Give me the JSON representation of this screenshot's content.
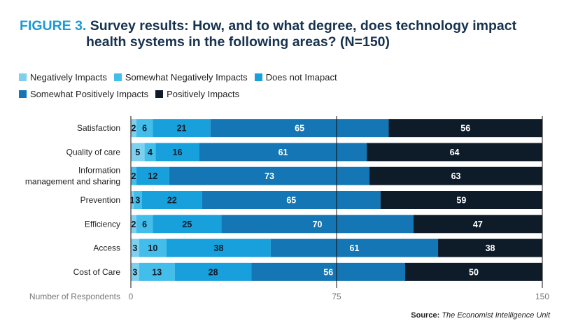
{
  "title": {
    "prefix": "FIGURE 3.",
    "line1": "Survey results: How, and to what degree, does technology impact",
    "line2": "health systems in the following areas? (N=150)"
  },
  "source": {
    "label": "Source:",
    "text": "The Economist Intelligence Unit"
  },
  "colors": {
    "title_accent": "#1d9ad6",
    "title_text": "#17324f",
    "series": [
      "#7fd0ee",
      "#43bde9",
      "#17a0dc",
      "#1476b4",
      "#0e1c2a"
    ]
  },
  "chart_data": {
    "type": "bar",
    "orientation": "horizontal",
    "stacked": true,
    "xlabel": "Number of Respondents",
    "xlim": [
      0,
      150
    ],
    "xticks": [
      0,
      75,
      150
    ],
    "categories": [
      "Satisfaction",
      "Quality of care",
      "Information management and sharing",
      "Prevention",
      "Efficiency",
      "Access",
      "Cost of Care"
    ],
    "category_lines": [
      [
        "Satisfaction"
      ],
      [
        "Quality of care"
      ],
      [
        "Information",
        "management and sharing"
      ],
      [
        "Prevention"
      ],
      [
        "Efficiency"
      ],
      [
        "Access"
      ],
      [
        "Cost of Care"
      ]
    ],
    "series": [
      {
        "name": "Negatively Impacts",
        "values": [
          2,
          5,
          0,
          1,
          2,
          3,
          3
        ]
      },
      {
        "name": "Somewhat Negatively Impacts",
        "values": [
          6,
          4,
          2,
          3,
          6,
          10,
          13
        ]
      },
      {
        "name": "Does not Imapact",
        "values": [
          21,
          16,
          12,
          22,
          25,
          38,
          28
        ]
      },
      {
        "name": "Somewhat Positively Impacts",
        "values": [
          65,
          61,
          73,
          65,
          70,
          61,
          56
        ]
      },
      {
        "name": "Positively Impacts",
        "values": [
          56,
          64,
          63,
          59,
          47,
          38,
          50
        ]
      }
    ]
  }
}
